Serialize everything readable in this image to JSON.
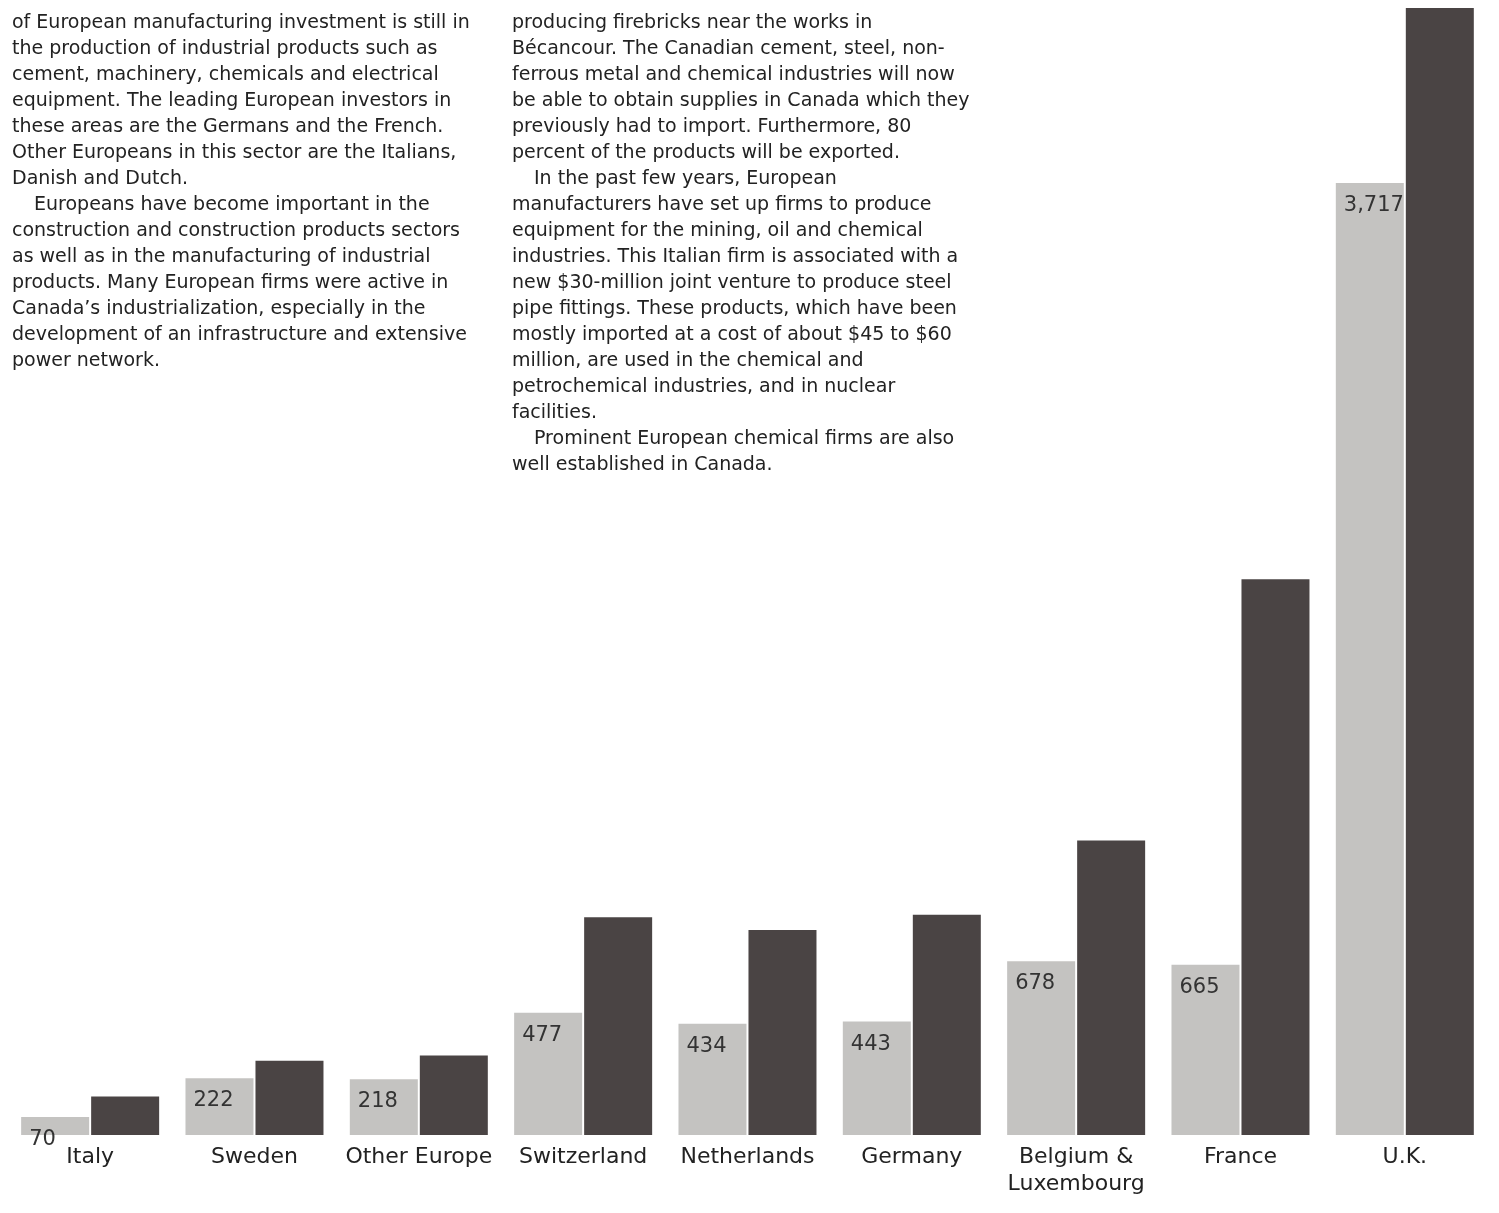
{
  "chart_data": {
    "type": "bar",
    "categories": [
      "Italy",
      "Sweden",
      "Other Europe",
      "Switzerland",
      "Netherlands",
      "Germany",
      "Belgium & Luxembourg",
      "France",
      "U.K."
    ],
    "series": [
      {
        "color": "#c4c3c1",
        "values": [
          70,
          222,
          218,
          477,
          434,
          443,
          678,
          665,
          3717
        ],
        "value_labels": [
          "70",
          "222",
          "218",
          "477",
          "434",
          "443",
          "678",
          "665",
          "3,717"
        ]
      },
      {
        "color": "#4a4444",
        "values": [
          150,
          290,
          310,
          850,
          800,
          860,
          1150,
          2170,
          4400
        ]
      }
    ],
    "legend": false,
    "annotations": [
      "of European manufacturing investment is still in the production of industrial products such as cement, machinery, chemicals and electrical equipment. The leading European investors in these areas are the Germans and the French. Other Europeans in this sector are the Italians, Danish and Dutch.",
      "Europeans have become important in the construction and construction products sectors as well as in the manufacturing of industrial products. Many European firms were active in Canada’s industrialization, especially in the development of an infrastructure and extensive power network.",
      "producing firebricks near the works in Bécancour. The Canadian cement, steel, non-ferrous metal and chemical industries will now be able to obtain supplies in Canada which they previously had to import. Furthermore, 80 percent of the products will be exported.",
      "In the past few years, European manufacturers have set up firms to produce equipment for the mining, oil and chemical industries. This Italian firm is associated with a new $30-million joint venture to produce steel pipe fittings. These products, which have been mostly imported at a cost of about $45 to $60 million, are used in the chemical and petrochemical industries, and in nuclear facilities.",
      "Prominent European chemical firms are also well established in Canada."
    ]
  }
}
